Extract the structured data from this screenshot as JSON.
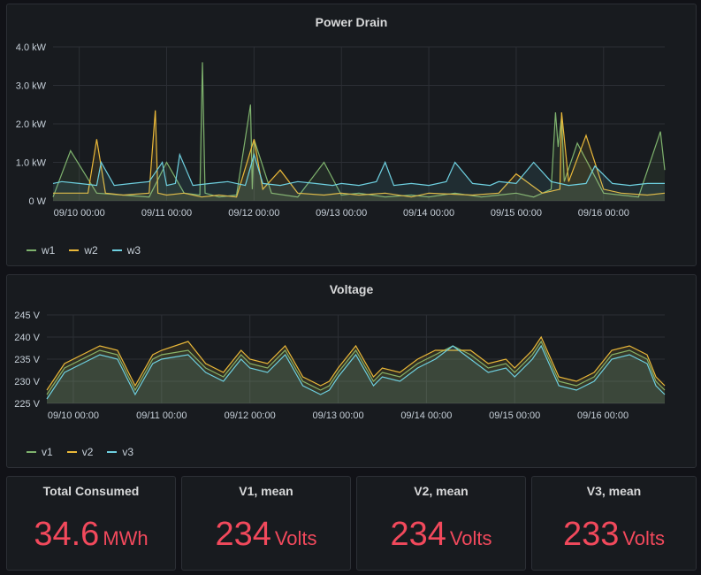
{
  "colors": {
    "series1": "#7eb26d",
    "series2": "#eab839",
    "series3": "#6ed0e0",
    "stat": "#f2495c"
  },
  "power_panel": {
    "title": "Power Drain",
    "legend": [
      {
        "name": "w1",
        "color": "#7eb26d"
      },
      {
        "name": "w2",
        "color": "#eab839"
      },
      {
        "name": "w3",
        "color": "#6ed0e0"
      }
    ],
    "chart_data": {
      "type": "line",
      "y_ticks": [
        "0 W",
        "1.0 kW",
        "2.0 kW",
        "3.0 kW",
        "4.0 kW"
      ],
      "ylim": [
        0,
        4
      ],
      "x_ticks": [
        "09/10 00:00",
        "09/11 00:00",
        "09/12 00:00",
        "09/13 00:00",
        "09/14 00:00",
        "09/15 00:00",
        "09/16 00:00"
      ],
      "xlim": [
        -0.3,
        6.7
      ],
      "grid": true,
      "legend_position": "bottom-left",
      "series": [
        {
          "name": "w1",
          "x": [
            -0.3,
            -0.1,
            0.2,
            0.5,
            0.8,
            1.0,
            1.2,
            1.38,
            1.41,
            1.44,
            1.6,
            1.8,
            1.96,
            1.98,
            2.0,
            2.2,
            2.5,
            2.8,
            3.0,
            3.2,
            3.5,
            3.8,
            4.0,
            4.3,
            4.6,
            4.8,
            5.0,
            5.2,
            5.4,
            5.45,
            5.48,
            5.52,
            5.55,
            5.7,
            6.0,
            6.2,
            6.4,
            6.65,
            6.7
          ],
          "y": [
            0.1,
            1.3,
            0.2,
            0.15,
            0.1,
            1.0,
            0.2,
            0.15,
            3.6,
            0.2,
            0.1,
            0.15,
            2.5,
            0.3,
            1.6,
            0.2,
            0.1,
            1.0,
            0.15,
            0.2,
            0.1,
            0.15,
            0.1,
            0.2,
            0.1,
            0.15,
            0.2,
            0.1,
            0.3,
            2.3,
            1.4,
            2.2,
            0.5,
            1.5,
            0.2,
            0.15,
            0.1,
            1.8,
            0.8
          ]
        },
        {
          "name": "w2",
          "x": [
            -0.3,
            0.1,
            0.2,
            0.3,
            0.5,
            0.8,
            0.87,
            0.9,
            1.0,
            1.2,
            1.4,
            1.6,
            1.8,
            2.0,
            2.1,
            2.3,
            2.5,
            2.8,
            3.0,
            3.2,
            3.5,
            3.8,
            4.0,
            4.5,
            4.8,
            5.0,
            5.3,
            5.5,
            5.52,
            5.6,
            5.8,
            6.0,
            6.2,
            6.5,
            6.7
          ],
          "y": [
            0.2,
            0.2,
            1.6,
            0.2,
            0.15,
            0.2,
            2.35,
            0.2,
            0.15,
            0.2,
            0.1,
            0.15,
            0.1,
            1.6,
            0.3,
            0.8,
            0.2,
            0.15,
            0.2,
            0.15,
            0.2,
            0.1,
            0.2,
            0.15,
            0.2,
            0.7,
            0.2,
            0.3,
            2.3,
            0.5,
            1.7,
            0.3,
            0.2,
            0.15,
            0.2
          ]
        },
        {
          "name": "w3",
          "x": [
            -0.3,
            -0.2,
            0.0,
            0.2,
            0.25,
            0.4,
            0.6,
            0.8,
            0.95,
            1.0,
            1.1,
            1.15,
            1.3,
            1.5,
            1.7,
            1.9,
            2.0,
            2.1,
            2.3,
            2.5,
            2.7,
            2.9,
            3.0,
            3.2,
            3.4,
            3.5,
            3.6,
            3.8,
            4.0,
            4.2,
            4.3,
            4.5,
            4.7,
            4.8,
            5.0,
            5.2,
            5.4,
            5.6,
            5.8,
            5.9,
            6.1,
            6.3,
            6.5,
            6.7
          ],
          "y": [
            0.45,
            0.5,
            0.45,
            0.4,
            1.0,
            0.4,
            0.45,
            0.5,
            1.0,
            0.4,
            0.45,
            1.2,
            0.4,
            0.45,
            0.5,
            0.4,
            1.2,
            0.45,
            0.4,
            0.5,
            0.45,
            0.4,
            0.45,
            0.4,
            0.5,
            1.0,
            0.4,
            0.45,
            0.4,
            0.5,
            1.0,
            0.45,
            0.4,
            0.5,
            0.45,
            1.0,
            0.5,
            0.4,
            0.45,
            0.9,
            0.45,
            0.4,
            0.45,
            0.45
          ]
        }
      ]
    }
  },
  "voltage_panel": {
    "title": "Voltage",
    "legend": [
      {
        "name": "v1",
        "color": "#7eb26d"
      },
      {
        "name": "v2",
        "color": "#eab839"
      },
      {
        "name": "v3",
        "color": "#6ed0e0"
      }
    ],
    "chart_data": {
      "type": "line",
      "y_ticks": [
        "225 V",
        "230 V",
        "235 V",
        "240 V",
        "245 V"
      ],
      "ylim": [
        225,
        245
      ],
      "x_ticks": [
        "09/10 00:00",
        "09/11 00:00",
        "09/12 00:00",
        "09/13 00:00",
        "09/14 00:00",
        "09/15 00:00",
        "09/16 00:00"
      ],
      "xlim": [
        -0.3,
        6.7
      ],
      "grid": true,
      "legend_position": "bottom-left",
      "series": [
        {
          "name": "v1",
          "x": [
            -0.3,
            -0.1,
            0.1,
            0.3,
            0.5,
            0.7,
            0.9,
            1.0,
            1.3,
            1.5,
            1.7,
            1.9,
            2.0,
            2.2,
            2.4,
            2.6,
            2.8,
            2.9,
            3.0,
            3.2,
            3.4,
            3.5,
            3.7,
            3.9,
            4.1,
            4.3,
            4.5,
            4.7,
            4.9,
            5.0,
            5.2,
            5.3,
            5.5,
            5.7,
            5.9,
            6.1,
            6.3,
            6.5,
            6.6,
            6.7
          ],
          "y": [
            227,
            233,
            235,
            237,
            236,
            228,
            235,
            236,
            237,
            233,
            231,
            236,
            234,
            233,
            237,
            230,
            228,
            229,
            232,
            237,
            230,
            232,
            231,
            234,
            236,
            238,
            236,
            233,
            234,
            232,
            236,
            239,
            230,
            229,
            231,
            236,
            237,
            235,
            230,
            228
          ]
        },
        {
          "name": "v2",
          "x": [
            -0.3,
            -0.1,
            0.1,
            0.3,
            0.5,
            0.7,
            0.9,
            1.0,
            1.3,
            1.5,
            1.7,
            1.9,
            2.0,
            2.2,
            2.4,
            2.6,
            2.8,
            2.9,
            3.0,
            3.2,
            3.4,
            3.5,
            3.7,
            3.9,
            4.1,
            4.3,
            4.5,
            4.7,
            4.9,
            5.0,
            5.2,
            5.3,
            5.5,
            5.7,
            5.9,
            6.1,
            6.3,
            6.5,
            6.6,
            6.7
          ],
          "y": [
            228,
            234,
            236,
            238,
            237,
            229,
            236,
            237,
            239,
            234,
            232,
            237,
            235,
            234,
            238,
            231,
            229,
            230,
            233,
            238,
            231,
            233,
            232,
            235,
            237,
            237,
            237,
            234,
            235,
            233,
            237,
            240,
            231,
            230,
            232,
            237,
            238,
            236,
            231,
            229
          ]
        },
        {
          "name": "v3",
          "x": [
            -0.3,
            -0.1,
            0.1,
            0.3,
            0.5,
            0.7,
            0.9,
            1.0,
            1.3,
            1.5,
            1.7,
            1.9,
            2.0,
            2.2,
            2.4,
            2.6,
            2.8,
            2.9,
            3.0,
            3.2,
            3.4,
            3.5,
            3.7,
            3.9,
            4.1,
            4.3,
            4.5,
            4.7,
            4.9,
            5.0,
            5.2,
            5.3,
            5.5,
            5.7,
            5.9,
            6.1,
            6.3,
            6.5,
            6.6,
            6.7
          ],
          "y": [
            226,
            232,
            234,
            236,
            235,
            227,
            234,
            235,
            236,
            232,
            230,
            235,
            233,
            232,
            236,
            229,
            227,
            228,
            231,
            236,
            229,
            231,
            230,
            233,
            235,
            238,
            235,
            232,
            233,
            231,
            235,
            238,
            229,
            228,
            230,
            235,
            236,
            234,
            229,
            227
          ]
        }
      ]
    }
  },
  "stats": [
    {
      "title": "Total Consumed",
      "value": "34.6",
      "unit": "MWh"
    },
    {
      "title": "V1, mean",
      "value": "234",
      "unit": "Volts"
    },
    {
      "title": "V2, mean",
      "value": "234",
      "unit": "Volts"
    },
    {
      "title": "V3, mean",
      "value": "233",
      "unit": "Volts"
    }
  ]
}
